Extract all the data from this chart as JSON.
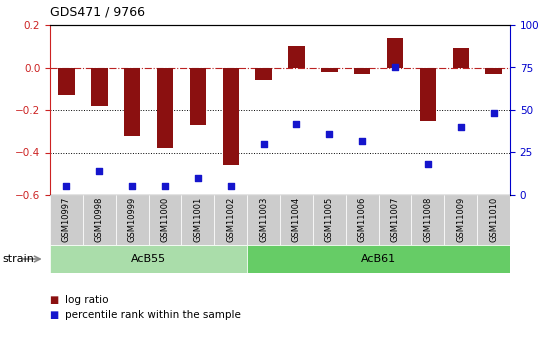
{
  "title": "GDS471 / 9766",
  "samples": [
    "GSM10997",
    "GSM10998",
    "GSM10999",
    "GSM11000",
    "GSM11001",
    "GSM11002",
    "GSM11003",
    "GSM11004",
    "GSM11005",
    "GSM11006",
    "GSM11007",
    "GSM11008",
    "GSM11009",
    "GSM11010"
  ],
  "log_ratio": [
    -0.13,
    -0.18,
    -0.32,
    -0.38,
    -0.27,
    -0.46,
    -0.06,
    0.1,
    -0.02,
    -0.03,
    0.14,
    -0.25,
    0.09,
    -0.03
  ],
  "percentile": [
    5,
    14,
    5,
    5,
    10,
    5,
    30,
    42,
    36,
    32,
    75,
    18,
    40,
    48
  ],
  "groups": [
    {
      "label": "AcB55",
      "start": 0,
      "end": 5,
      "color": "#aaddaa"
    },
    {
      "label": "AcB61",
      "start": 6,
      "end": 13,
      "color": "#66cc66"
    }
  ],
  "ylim": [
    -0.6,
    0.2
  ],
  "yticks_left": [
    -0.6,
    -0.4,
    -0.2,
    0.0,
    0.2
  ],
  "yticks_right": [
    0,
    25,
    50,
    75,
    100
  ],
  "bar_color": "#8B1010",
  "dot_color": "#1515CC",
  "dashed_color": "#bb2222",
  "bg_color": "#ffffff",
  "label_log": "log ratio",
  "label_pct": "percentile rank within the sample",
  "strain_label": "strain"
}
